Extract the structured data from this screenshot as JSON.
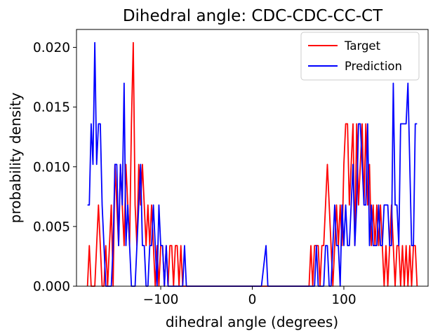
{
  "chart_data": {
    "type": "line",
    "title": "Dihedral angle: CDC-CDC-CC-CT",
    "xlabel": "dihedral angle (degrees)",
    "ylabel": "probability density",
    "xlim": [
      -192,
      192
    ],
    "ylim": [
      0,
      0.0215
    ],
    "xticks": [
      -100,
      0,
      100
    ],
    "xtick_labels": [
      "−100",
      "0",
      "100"
    ],
    "yticks": [
      0,
      0.005,
      0.01,
      0.015,
      0.02
    ],
    "ytick_labels": [
      "0.000",
      "0.005",
      "0.010",
      "0.015",
      "0.020"
    ],
    "grid": false,
    "legend": "top-right",
    "series": [
      {
        "name": "Target",
        "color": "#ff0000",
        "x": [
          -180,
          -178,
          -176,
          -174,
          -172,
          -170,
          -168,
          -166,
          -164,
          -162,
          -160,
          -158,
          -156,
          -154,
          -152,
          -150,
          -148,
          -146,
          -144,
          -142,
          -140,
          -138,
          -136,
          -134,
          -132,
          -130,
          -128,
          -126,
          -124,
          -122,
          -120,
          -118,
          -116,
          -114,
          -112,
          -110,
          -108,
          -106,
          -104,
          -102,
          -100,
          -98,
          -96,
          -94,
          -92,
          -90,
          -88,
          -86,
          -84,
          -82,
          -80,
          -78,
          -76,
          -74,
          -72,
          -70,
          -60,
          -40,
          -20,
          0,
          10,
          15,
          17,
          19,
          21,
          23,
          30,
          40,
          50,
          60,
          62,
          64,
          66,
          68,
          70,
          72,
          74,
          76,
          78,
          80,
          82,
          84,
          86,
          88,
          90,
          92,
          94,
          96,
          98,
          100,
          102,
          104,
          106,
          108,
          110,
          112,
          114,
          116,
          118,
          120,
          122,
          124,
          126,
          128,
          130,
          132,
          134,
          136,
          138,
          140,
          142,
          144,
          146,
          148,
          150,
          152,
          154,
          156,
          158,
          160,
          162,
          164,
          166,
          168,
          170,
          172,
          174,
          176,
          178,
          180
        ],
        "y": [
          0,
          0.0034,
          0,
          0,
          0,
          0.0034,
          0.0068,
          0.0034,
          0,
          0,
          0.0034,
          0,
          0.0034,
          0.0068,
          0,
          0.0102,
          0.0068,
          0.0034,
          0.0102,
          0.0068,
          0.0034,
          0.0102,
          0.0068,
          0.0034,
          0.0136,
          0.0204,
          0.0068,
          0.0034,
          0.0102,
          0.0068,
          0.0102,
          0.0068,
          0.0034,
          0.0068,
          0.0034,
          0.0068,
          0.0034,
          0,
          0.0034,
          0,
          0.0034,
          0.0034,
          0,
          0.0034,
          0,
          0.0034,
          0.0034,
          0,
          0.0034,
          0.0034,
          0,
          0.0034,
          0,
          0,
          0,
          0,
          0,
          0,
          0,
          0,
          0,
          0,
          0,
          0,
          0,
          0,
          0,
          0,
          0,
          0,
          0,
          0.0034,
          0,
          0.0034,
          0.0034,
          0.0034,
          0,
          0.0034,
          0.0034,
          0.0068,
          0.0102,
          0.0068,
          0.0034,
          0,
          0.0034,
          0.0068,
          0.0034,
          0.0068,
          0.0034,
          0.0102,
          0.0136,
          0.0136,
          0.0068,
          0.0102,
          0.0136,
          0.0034,
          0.0136,
          0.0068,
          0.0102,
          0.0136,
          0.0068,
          0.0136,
          0.0068,
          0.0102,
          0.0034,
          0.0068,
          0.0034,
          0.0068,
          0.0034,
          0.0068,
          0.0034,
          0,
          0.0034,
          0,
          0.0034,
          0.0068,
          0.0034,
          0,
          0.0034,
          0.0034,
          0,
          0.0034,
          0,
          0.0034,
          0,
          0.0034,
          0,
          0.0034,
          0.0034,
          0
        ]
      },
      {
        "name": "Prediction",
        "color": "#0000ff",
        "x": [
          -180,
          -178,
          -176,
          -174,
          -172,
          -170,
          -168,
          -166,
          -164,
          -162,
          -160,
          -158,
          -156,
          -154,
          -152,
          -150,
          -148,
          -146,
          -144,
          -142,
          -140,
          -138,
          -136,
          -134,
          -132,
          -130,
          -128,
          -126,
          -124,
          -122,
          -120,
          -118,
          -116,
          -114,
          -112,
          -110,
          -108,
          -106,
          -104,
          -102,
          -100,
          -98,
          -96,
          -94,
          -92,
          -90,
          -88,
          -86,
          -84,
          -82,
          -80,
          -78,
          -76,
          -74,
          -72,
          -70,
          -60,
          -40,
          -20,
          0,
          10,
          15,
          17,
          19,
          21,
          23,
          30,
          40,
          50,
          60,
          62,
          64,
          66,
          68,
          70,
          72,
          74,
          76,
          78,
          80,
          82,
          84,
          86,
          88,
          90,
          92,
          94,
          96,
          98,
          100,
          102,
          104,
          106,
          108,
          110,
          112,
          114,
          116,
          118,
          120,
          122,
          124,
          126,
          128,
          130,
          132,
          134,
          136,
          138,
          140,
          142,
          144,
          146,
          148,
          150,
          152,
          154,
          156,
          158,
          160,
          162,
          164,
          166,
          168,
          170,
          172,
          174,
          176,
          178,
          180
        ],
        "y": [
          0.0068,
          0.0068,
          0.0136,
          0.0102,
          0.0204,
          0.0102,
          0.0136,
          0.0136,
          0.0068,
          0.0034,
          0,
          0,
          0,
          0,
          0.0034,
          0.0102,
          0.0102,
          0.0034,
          0.0102,
          0.0068,
          0.017,
          0.0034,
          0.0068,
          0.0034,
          0,
          0,
          0,
          0.0034,
          0.0068,
          0.0102,
          0.0034,
          0.0034,
          0,
          0,
          0.0034,
          0.0034,
          0.0068,
          0.0034,
          0,
          0.0068,
          0.0034,
          0.0034,
          0,
          0.0034,
          0,
          0,
          0,
          0,
          0,
          0,
          0,
          0,
          0,
          0.0034,
          0,
          0,
          0,
          0,
          0,
          0,
          0,
          0.0034,
          0,
          0,
          0,
          0,
          0,
          0,
          0,
          0,
          0,
          0,
          0,
          0,
          0.0034,
          0,
          0,
          0,
          0,
          0.0034,
          0.0034,
          0,
          0,
          0.0034,
          0.0068,
          0.0034,
          0.0034,
          0,
          0.0068,
          0.0034,
          0.0068,
          0.0034,
          0.0034,
          0.0068,
          0.0102,
          0.0034,
          0.0068,
          0.0136,
          0.0136,
          0.0102,
          0.0068,
          0.0068,
          0.0136,
          0.0034,
          0.0068,
          0.0034,
          0.0034,
          0.0034,
          0.0068,
          0.0034,
          0.0034,
          0.0068,
          0.0068,
          0.0068,
          0.0034,
          0.0034,
          0.017,
          0.0068,
          0.0068,
          0.0034,
          0.0136,
          0.0136,
          0.0136,
          0.0136,
          0.017,
          0.0102,
          0.0034,
          0.0034,
          0.0136,
          0.0136
        ]
      }
    ]
  }
}
